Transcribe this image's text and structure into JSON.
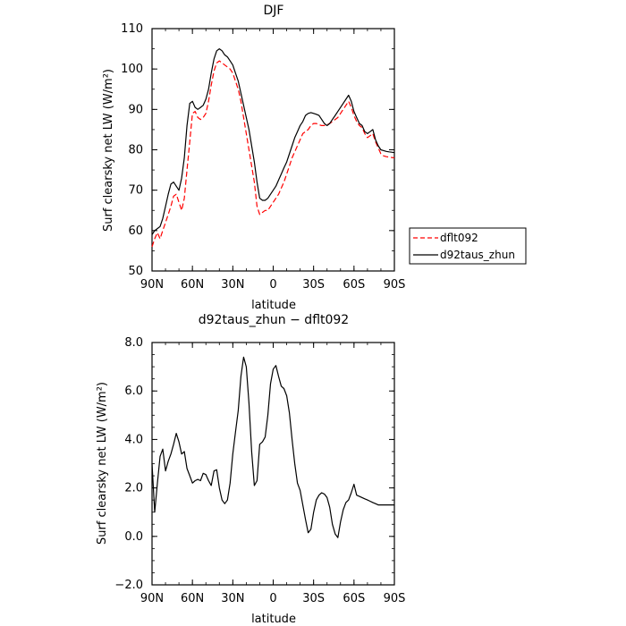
{
  "chart_data": [
    {
      "type": "line",
      "title": "DJF",
      "xlabel": "latitude",
      "ylabel": "Surf clearsky net LW (W/m²)",
      "x_ticks": [
        "90N",
        "60N",
        "30N",
        "0",
        "30S",
        "60S",
        "90S"
      ],
      "y_ticks": [
        "50",
        "60",
        "70",
        "80",
        "90",
        "100",
        "110"
      ],
      "xlim": [
        90,
        -90
      ],
      "ylim": [
        50,
        110
      ],
      "legend_position": "right",
      "series": [
        {
          "name": "dflt092",
          "color": "#ff0000",
          "style": "dashed",
          "x": [
            90,
            88,
            86,
            84,
            82,
            80,
            78,
            76,
            74,
            72,
            70,
            68,
            66,
            64,
            62,
            60,
            58,
            56,
            54,
            52,
            50,
            48,
            46,
            44,
            42,
            40,
            38,
            36,
            34,
            32,
            30,
            28,
            26,
            24,
            22,
            20,
            18,
            16,
            14,
            12,
            10,
            8,
            6,
            4,
            2,
            0,
            -2,
            -4,
            -6,
            -8,
            -10,
            -12,
            -14,
            -16,
            -18,
            -20,
            -22,
            -24,
            -26,
            -28,
            -30,
            -32,
            -34,
            -36,
            -38,
            -40,
            -42,
            -44,
            -46,
            -48,
            -50,
            -52,
            -54,
            -56,
            -58,
            -60,
            -62,
            -64,
            -66,
            -68,
            -70,
            -72,
            -74,
            -76,
            -78,
            -80,
            -82,
            -84,
            -86,
            -88,
            -90
          ],
          "y": [
            56,
            58,
            59.5,
            58,
            60,
            62,
            64,
            66,
            68.5,
            69,
            67,
            65,
            68,
            75,
            82,
            89,
            89.5,
            88,
            87.5,
            88,
            89,
            92,
            96,
            99.5,
            101.5,
            102,
            101.5,
            101,
            100.5,
            100,
            99,
            97,
            95,
            92,
            88,
            84,
            80,
            76,
            72,
            66,
            64,
            64.5,
            65,
            65,
            66,
            67,
            68,
            69,
            70.5,
            72,
            74,
            76,
            78,
            79.5,
            81,
            82.5,
            84,
            84.5,
            85,
            86,
            86.5,
            86.5,
            86.2,
            86,
            86,
            86.2,
            86.5,
            87,
            87.5,
            88,
            89,
            90,
            91,
            92,
            90.5,
            88.5,
            87,
            86,
            85.5,
            84,
            83,
            83.5,
            84,
            82,
            80.5,
            79,
            78.5,
            78.3,
            78.2,
            78.1,
            78
          ]
        },
        {
          "name": "d92taus_zhun",
          "color": "#000000",
          "style": "solid",
          "x": [
            90,
            88,
            86,
            84,
            82,
            80,
            78,
            76,
            74,
            72,
            70,
            68,
            66,
            64,
            62,
            60,
            58,
            56,
            54,
            52,
            50,
            48,
            46,
            44,
            42,
            40,
            38,
            36,
            34,
            32,
            30,
            28,
            26,
            24,
            22,
            20,
            18,
            16,
            14,
            12,
            10,
            8,
            6,
            4,
            2,
            0,
            -2,
            -4,
            -6,
            -8,
            -10,
            -12,
            -14,
            -16,
            -18,
            -20,
            -22,
            -24,
            -26,
            -28,
            -30,
            -32,
            -34,
            -36,
            -38,
            -40,
            -42,
            -44,
            -46,
            -48,
            -50,
            -52,
            -54,
            -56,
            -58,
            -60,
            -62,
            -64,
            -66,
            -68,
            -70,
            -72,
            -74,
            -76,
            -78,
            -80,
            -82,
            -84,
            -86,
            -88,
            -90
          ],
          "y": [
            59,
            60,
            60.5,
            61,
            63,
            66,
            69,
            71.5,
            72,
            71,
            70,
            73,
            78,
            86,
            91.5,
            92,
            90.5,
            90,
            90.5,
            91,
            92.5,
            95,
            99,
            102.5,
            104.5,
            105,
            104.5,
            103.5,
            103,
            102,
            101,
            99,
            97,
            94,
            91,
            88,
            85,
            81,
            77,
            72,
            68,
            67.5,
            67.5,
            68,
            69,
            70,
            71,
            72.5,
            74,
            75.5,
            77,
            79,
            81,
            83,
            84.5,
            86,
            87,
            88.5,
            89,
            89.2,
            89,
            88.8,
            88.5,
            87.5,
            86.5,
            86,
            86.5,
            87.5,
            88.5,
            89.5,
            90.5,
            91.5,
            92.5,
            93.5,
            92,
            89.5,
            88,
            86.5,
            86,
            84.5,
            84,
            84.5,
            85,
            82.5,
            81,
            80,
            79.8,
            79.6,
            79.5,
            79.4,
            79.3
          ]
        }
      ]
    },
    {
      "type": "line",
      "title": "d92taus_zhun − dflt092",
      "xlabel": "latitude",
      "ylabel": "Surf clearsky net LW (W/m²)",
      "x_ticks": [
        "90N",
        "60N",
        "30N",
        "0",
        "30S",
        "60S",
        "90S"
      ],
      "y_ticks": [
        "−2.0",
        "0.0",
        "2.0",
        "4.0",
        "6.0",
        "8.0"
      ],
      "xlim": [
        90,
        -90
      ],
      "ylim": [
        -2,
        8
      ],
      "series": [
        {
          "color": "#000000",
          "style": "solid",
          "x": [
            90,
            88,
            86,
            84,
            82,
            80,
            78,
            76,
            74,
            72,
            70,
            68,
            66,
            64,
            62,
            60,
            58,
            56,
            54,
            52,
            50,
            48,
            46,
            44,
            42,
            40,
            38,
            36,
            34,
            32,
            30,
            28,
            26,
            24,
            22,
            20,
            18,
            16,
            14,
            12,
            10,
            8,
            6,
            4,
            2,
            0,
            -2,
            -4,
            -6,
            -8,
            -10,
            -12,
            -14,
            -16,
            -18,
            -20,
            -22,
            -24,
            -26,
            -28,
            -30,
            -32,
            -34,
            -36,
            -38,
            -40,
            -42,
            -44,
            -46,
            -48,
            -50,
            -52,
            -54,
            -56,
            -58,
            -60,
            -62,
            -64,
            -66,
            -68,
            -70,
            -72,
            -74,
            -76,
            -78,
            -80,
            -82,
            -84,
            -86,
            -88,
            -90
          ],
          "y": [
            3.0,
            1.0,
            2.2,
            3.3,
            3.6,
            2.7,
            3.1,
            3.4,
            3.8,
            4.25,
            3.9,
            3.4,
            3.5,
            2.8,
            2.5,
            2.2,
            2.3,
            2.35,
            2.3,
            2.6,
            2.55,
            2.3,
            2.1,
            2.7,
            2.75,
            2.0,
            1.5,
            1.35,
            1.5,
            2.2,
            3.4,
            4.3,
            5.2,
            6.6,
            7.4,
            7.0,
            5.5,
            3.5,
            2.1,
            2.3,
            3.8,
            3.9,
            4.1,
            5.0,
            6.3,
            6.9,
            7.05,
            6.6,
            6.2,
            6.1,
            5.8,
            5.1,
            4.0,
            3.0,
            2.2,
            1.9,
            1.3,
            0.7,
            0.15,
            0.3,
            1.0,
            1.5,
            1.7,
            1.8,
            1.75,
            1.6,
            1.2,
            0.5,
            0.1,
            -0.05,
            0.6,
            1.1,
            1.4,
            1.5,
            1.8,
            2.15,
            1.7,
            1.65,
            1.6,
            1.55,
            1.5,
            1.45,
            1.4,
            1.35,
            1.3,
            1.3,
            1.3,
            1.3,
            1.3,
            1.3,
            1.3
          ]
        }
      ]
    }
  ]
}
